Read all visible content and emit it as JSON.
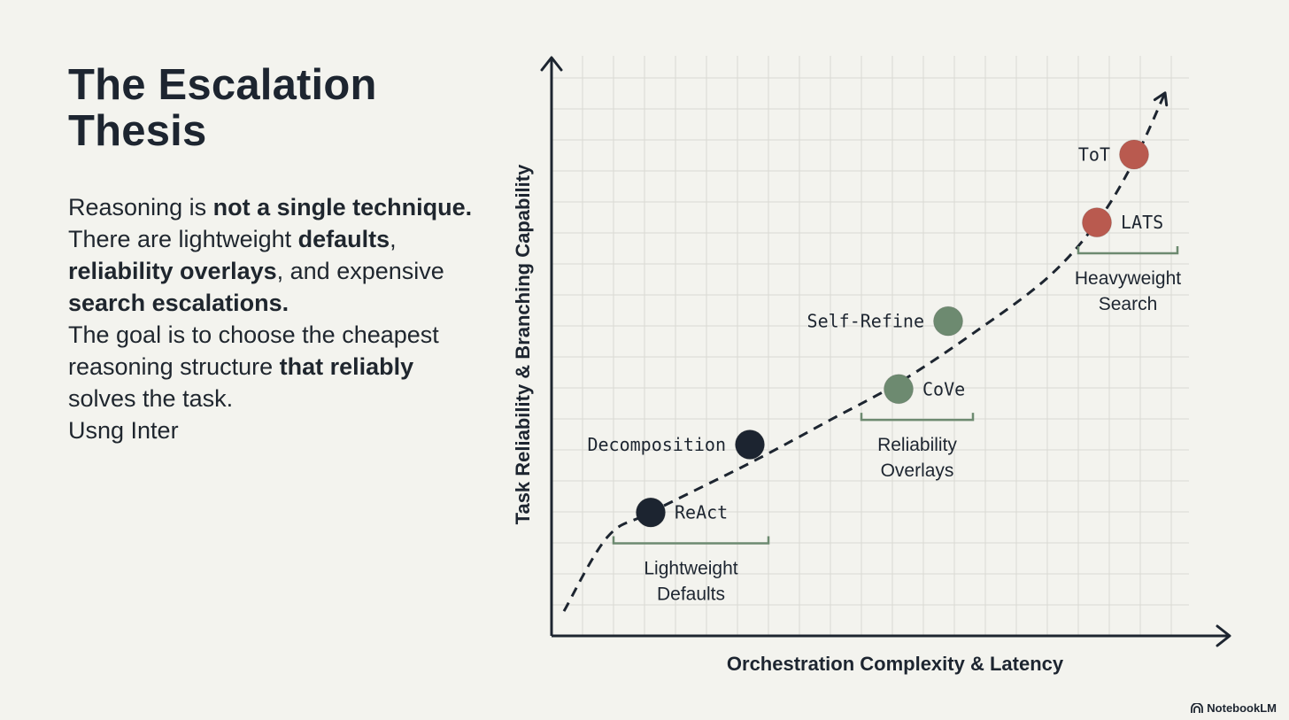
{
  "slide": {
    "title": "The Escalation Thesis",
    "body": {
      "p1_a": "Reasoning is ",
      "p1_b": "not a single technique.",
      "p1_c": " There are lightweight ",
      "p1_d": "defaults",
      "p1_e": ", ",
      "p1_f": "reliability overlays",
      "p1_g": ", and expensive ",
      "p1_h": "search escalations.",
      "p2_a": "The goal is to choose the cheapest reasoning structure ",
      "p2_b": "that reliably",
      "p2_c": " solves the task.",
      "p3": "Usng Inter"
    }
  },
  "chart_data": {
    "type": "scatter",
    "title": "",
    "xlabel": "Orchestration Complexity & Latency",
    "ylabel": "Task Reliability & Branching Capability",
    "xlim": [
      0,
      11
    ],
    "ylim": [
      0,
      9.4
    ],
    "grid": true,
    "points": [
      {
        "label": "ReAct",
        "x": 1.6,
        "y": 2.0,
        "group": "Lightweight Defaults",
        "color": "#1c2430"
      },
      {
        "label": "Decomposition",
        "x": 3.2,
        "y": 3.1,
        "group": "Lightweight Defaults",
        "color": "#1c2430"
      },
      {
        "label": "CoVe",
        "x": 5.6,
        "y": 4.0,
        "group": "Reliability Overlays",
        "color": "#6d8a70"
      },
      {
        "label": "Self-Refine",
        "x": 6.4,
        "y": 5.1,
        "group": "Reliability Overlays",
        "color": "#6d8a70"
      },
      {
        "label": "LATS",
        "x": 8.8,
        "y": 6.7,
        "group": "Heavyweight Search",
        "color": "#b95a4f"
      },
      {
        "label": "ToT",
        "x": 9.4,
        "y": 7.8,
        "group": "Heavyweight Search",
        "color": "#b95a4f"
      }
    ],
    "trend": {
      "style": "dashed",
      "x": [
        0.2,
        0.9,
        1.6,
        3.2,
        4.5,
        5.6,
        6.8,
        8.0,
        8.8,
        9.4,
        9.9
      ],
      "y": [
        0.4,
        1.6,
        2.0,
        2.8,
        3.5,
        4.1,
        4.9,
        5.8,
        6.7,
        7.7,
        8.8
      ]
    },
    "groups": [
      {
        "label_line1": "Lightweight",
        "label_line2": "Defaults",
        "x_range": [
          1.0,
          3.5
        ],
        "y": 1.5
      },
      {
        "label_line1": "Reliability",
        "label_line2": "Overlays",
        "x_range": [
          5.0,
          6.8
        ],
        "y": 3.5
      },
      {
        "label_line1": "Heavyweight",
        "label_line2": "Search",
        "x_range": [
          8.5,
          10.1
        ],
        "y": 6.2
      }
    ]
  },
  "footer": {
    "brand": "NotebookLM"
  }
}
